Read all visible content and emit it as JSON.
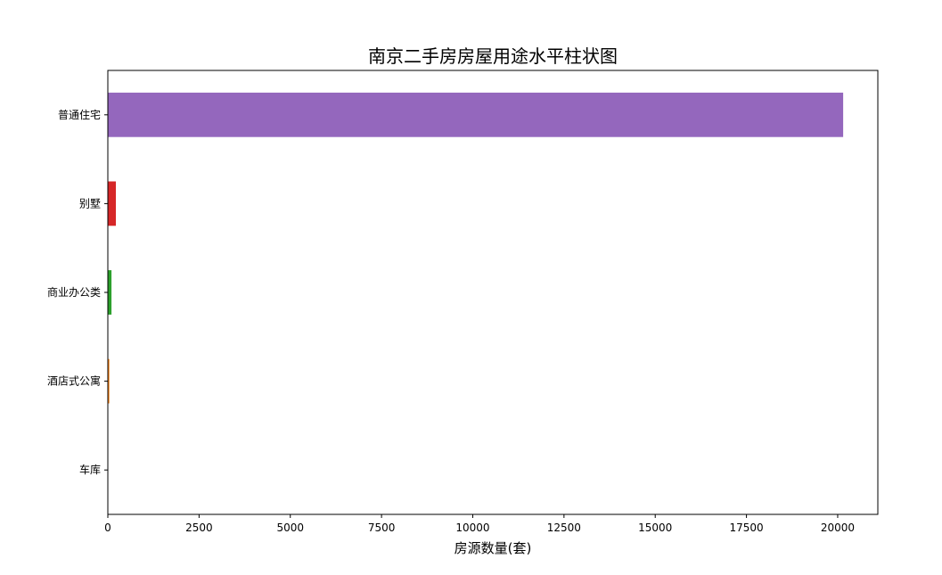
{
  "chart_data": {
    "type": "bar",
    "orientation": "horizontal",
    "title": "南京二手房房屋用途水平柱状图",
    "xlabel": "房源数量(套)",
    "ylabel": "",
    "categories": [
      "普通住宅",
      "别墅",
      "商业办公类",
      "酒店式公寓",
      "车库"
    ],
    "values": [
      20150,
      220,
      100,
      40,
      5
    ],
    "colors": [
      "#9467bd",
      "#d62728",
      "#2ca02c",
      "#ff7f0e",
      "#1f77b4"
    ],
    "xlim": [
      0,
      21100
    ],
    "xticks": [
      0,
      2500,
      5000,
      7500,
      10000,
      12500,
      15000,
      17500,
      20000
    ],
    "xtick_labels": [
      "0",
      "2500",
      "5000",
      "7500",
      "10000",
      "12500",
      "15000",
      "17500",
      "20000"
    ],
    "grid": false,
    "legend": "none"
  }
}
